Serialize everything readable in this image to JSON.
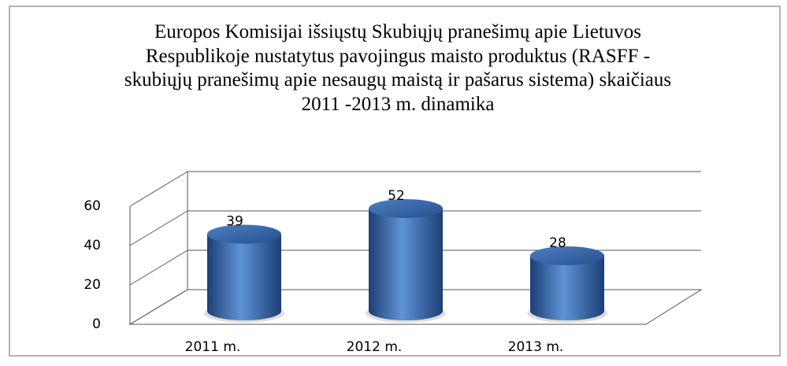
{
  "chart_data": {
    "type": "bar3d",
    "title": "Europos Komisijai išsiųstų Skubiųjų pranešimų apie Lietuvos Respublikoje nustatytus pavojingus maisto produktus (RASFF - skubiųjų pranešimų apie nesaugų maistą ir pašarus sistema) skaičiaus 2011 -2013  m. dinamika",
    "categories": [
      "2011 m.",
      "2012 m.",
      "2013 m."
    ],
    "values": [
      39,
      52,
      28
    ],
    "color": "#3f72b8",
    "ylim": [
      0,
      60
    ],
    "yticks": [
      0,
      20,
      40,
      60
    ],
    "grid": true
  }
}
